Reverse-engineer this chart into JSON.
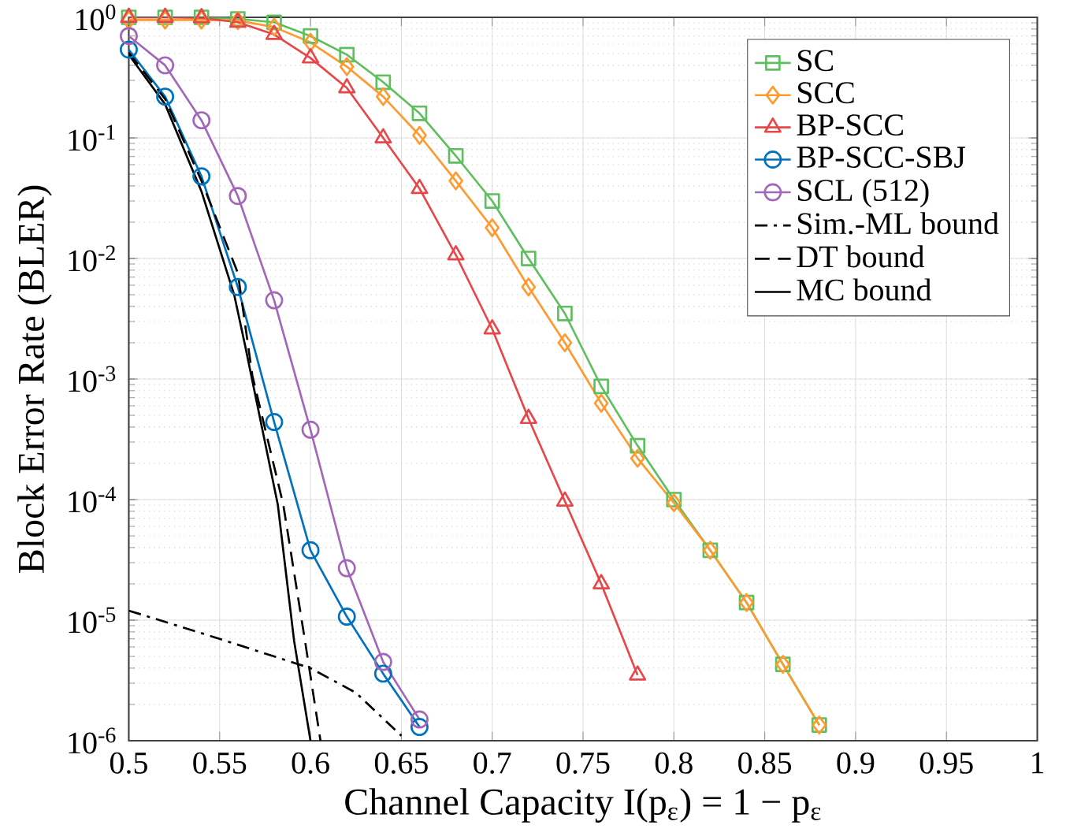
{
  "chart_data": {
    "type": "line",
    "xlabel": "Channel Capacity I(p$_{ε}$) = 1 − p$_{ε}$",
    "ylabel": "Block Error Rate (BLER)",
    "log": "y",
    "grid": true,
    "legend": "top right",
    "xlim": [
      0.5,
      1
    ],
    "xticks": [
      0.5,
      0.55,
      0.6,
      0.65,
      0.7,
      0.75,
      0.8,
      0.85,
      0.9,
      0.95,
      1
    ],
    "ylim": [
      1e-06,
      1
    ],
    "yticks": [
      {
        "value": 1e-06,
        "label": "10$^{-6}$"
      },
      {
        "value": 1e-05,
        "label": "10$^{-5}$"
      },
      {
        "value": 0.0001,
        "label": "10$^{-4}$"
      },
      {
        "value": 0.001,
        "label": "10$^{-3}$"
      },
      {
        "value": 0.01,
        "label": "10$^{-2}$"
      },
      {
        "value": 0.1,
        "label": "10$^{-1}$"
      },
      {
        "value": 1,
        "label": "10$^{0}$"
      }
    ],
    "series": [
      {
        "name": "SC",
        "color": "#5fbf5f",
        "marker": "square",
        "line_style": "solid",
        "x": [
          0.5,
          0.52,
          0.54,
          0.56,
          0.58,
          0.6,
          0.62,
          0.64,
          0.66,
          0.68,
          0.7,
          0.72,
          0.74,
          0.76,
          0.78,
          0.8,
          0.82,
          0.84,
          0.86,
          0.88
        ],
        "values": [
          1,
          1,
          1,
          0.97,
          0.91,
          0.7,
          0.49,
          0.29,
          0.16,
          0.071,
          0.03,
          0.01,
          0.0035,
          0.00087,
          0.00028,
          0.0001,
          3.8e-05,
          1.4e-05,
          4.3e-06,
          1.35e-06
        ]
      },
      {
        "name": "SCC",
        "color": "#ff9a2e",
        "marker": "diamond",
        "line_style": "solid",
        "x": [
          0.5,
          0.52,
          0.54,
          0.56,
          0.58,
          0.6,
          0.62,
          0.64,
          0.66,
          0.68,
          0.7,
          0.72,
          0.74,
          0.76,
          0.78,
          0.8,
          0.82,
          0.84,
          0.86,
          0.88
        ],
        "values": [
          0.95,
          0.95,
          0.95,
          0.94,
          0.83,
          0.62,
          0.39,
          0.22,
          0.105,
          0.044,
          0.018,
          0.0058,
          0.002,
          0.00063,
          0.00022,
          9.4e-05,
          3.8e-05,
          1.4e-05,
          4.3e-06,
          1.35e-06
        ]
      },
      {
        "name": "BP-SCC",
        "color": "#e8474a",
        "marker": "triangle",
        "line_style": "solid",
        "x": [
          0.5,
          0.52,
          0.54,
          0.56,
          0.58,
          0.6,
          0.62,
          0.64,
          0.66,
          0.68,
          0.7,
          0.72,
          0.74,
          0.76,
          0.78
        ],
        "values": [
          1,
          1,
          0.99,
          0.91,
          0.72,
          0.46,
          0.26,
          0.1,
          0.038,
          0.0107,
          0.0026,
          0.00047,
          9.7e-05,
          2e-05,
          3.5e-06
        ]
      },
      {
        "name": "BP-SCC-SBJ",
        "color": "#0072bd",
        "marker": "circle",
        "line_style": "solid",
        "x": [
          0.5,
          0.52,
          0.54,
          0.56,
          0.58,
          0.6,
          0.62,
          0.64,
          0.66
        ],
        "values": [
          0.54,
          0.22,
          0.048,
          0.0058,
          0.00044,
          3.8e-05,
          1.07e-05,
          3.6e-06,
          1.3e-06
        ]
      },
      {
        "name": "SCL (512)",
        "color": "#a267b8",
        "marker": "circle",
        "line_style": "solid",
        "x": [
          0.5,
          0.52,
          0.54,
          0.56,
          0.58,
          0.6,
          0.62,
          0.64,
          0.66
        ],
        "values": [
          0.7,
          0.4,
          0.14,
          0.033,
          0.0045,
          0.00038,
          2.7e-05,
          4.5e-06,
          1.5e-06
        ]
      },
      {
        "name": "Sim.-ML bound",
        "color": "#000000",
        "marker": "none",
        "line_style": "dashdot",
        "x": [
          0.5,
          0.55,
          0.6,
          0.625,
          0.65
        ],
        "values": [
          1.2e-05,
          7e-06,
          4e-06,
          2.5e-06,
          1.1e-06
        ]
      },
      {
        "name": "DT bound",
        "color": "#000000",
        "marker": "none",
        "line_style": "dashed",
        "x": [
          0.5,
          0.52,
          0.54,
          0.56,
          0.568,
          0.585,
          0.597,
          0.6055
        ],
        "values": [
          0.51,
          0.21,
          0.044,
          0.0076,
          0.00107,
          9.1e-05,
          6.7e-06,
          1e-06
        ]
      },
      {
        "name": "MC bound",
        "color": "#000000",
        "marker": "none",
        "line_style": "solid",
        "x": [
          0.5,
          0.52,
          0.54,
          0.558,
          0.564,
          0.582,
          0.591,
          0.6
        ],
        "values": [
          0.49,
          0.19,
          0.036,
          0.005,
          0.0019,
          9.1e-05,
          6.7e-06,
          1e-06
        ]
      }
    ]
  }
}
